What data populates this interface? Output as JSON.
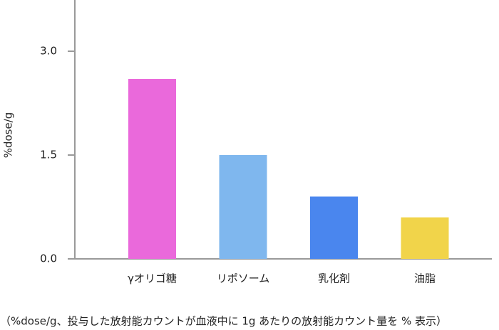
{
  "chart_data": {
    "type": "bar",
    "y_label": "%dose/g",
    "caption": "（%dose/g、投与した放射能カウントが血液中に 1g あたりの放射能カウント量を % 表示）",
    "categories": [
      "γオリゴ糖",
      "リポソーム",
      "乳化剤",
      "油脂"
    ],
    "values": [
      2.6,
      1.5,
      0.9,
      0.6
    ],
    "colors": [
      "#ea69db",
      "#7fb7ee",
      "#4a86ee",
      "#f1d44a"
    ],
    "ylim": [
      0,
      3.74
    ],
    "yticks": [
      {
        "value": 0,
        "label": "0.0"
      },
      {
        "value": 1.5,
        "label": "1.5"
      },
      {
        "value": 3,
        "label": "3.0"
      }
    ]
  }
}
